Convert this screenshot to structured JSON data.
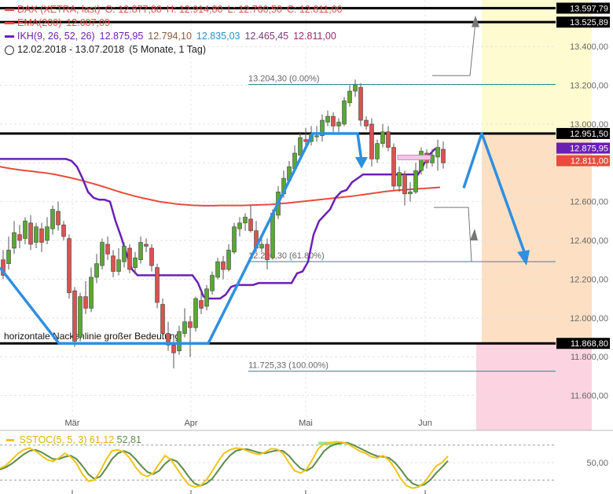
{
  "legend": {
    "dax": {
      "label": "DAX (XETRA, last)",
      "o": "O: 12.877,80",
      "h": "H: 12.914,80",
      "l": "L: 12.760,50",
      "c": "C: 12.811,00",
      "color": "#d9534f"
    },
    "ema": {
      "label": "EMA(200)",
      "value": "12.607,09",
      "color": "#e74c3c"
    },
    "ikh": {
      "label": "IKH(9, 26, 52, 26)",
      "v1": "12.875,95",
      "v2": "12.794,10",
      "v3": "12.835,03",
      "v4": "12.465,45",
      "v5": "12.811,00",
      "color": "#6a1fb5"
    },
    "period": "12.02.2018 - 13.07.2018",
    "period_detail": "(5 Monate, 1 Tag)"
  },
  "oscillator": {
    "label": "SSTOC(5, 5, 3)",
    "k": "61,12",
    "d": "52,81",
    "k_color": "#f0c419",
    "d_color": "#5d8a4a",
    "tick": "50,00"
  },
  "chart_data": {
    "type": "candlestick",
    "title": "DAX (XETRA, last)",
    "y_range": [
      11420,
      13640
    ],
    "y_ticks": [
      11600,
      11800,
      12000,
      12200,
      12400,
      12600,
      12800,
      13000,
      13200,
      13400
    ],
    "y_tick_labels": [
      "11.600,00",
      "11.800,00",
      "12.000,00",
      "12.200,00",
      "12.400,00",
      "12.600,00",
      "12.800,00",
      "13.000,00",
      "13.200,00",
      "13.400,00"
    ],
    "x_labels": [
      "Mär",
      "Apr",
      "Mai",
      "Jun"
    ],
    "candles": [
      [
        12300,
        12220,
        12350,
        12200
      ],
      [
        12280,
        12350,
        12420,
        12250
      ],
      [
        12360,
        12440,
        12500,
        12330
      ],
      [
        12430,
        12400,
        12480,
        12360
      ],
      [
        12410,
        12500,
        12520,
        12380
      ],
      [
        12490,
        12380,
        12530,
        12350
      ],
      [
        12390,
        12470,
        12490,
        12360
      ],
      [
        12460,
        12390,
        12490,
        12340
      ],
      [
        12400,
        12470,
        12520,
        12380
      ],
      [
        12460,
        12560,
        12580,
        12430
      ],
      [
        12550,
        12480,
        12600,
        12450
      ],
      [
        12480,
        12420,
        12500,
        12400
      ],
      [
        12410,
        12130,
        12430,
        12100
      ],
      [
        12140,
        11880,
        12160,
        11850
      ],
      [
        11900,
        12110,
        12130,
        11880
      ],
      [
        12110,
        12050,
        12190,
        12020
      ],
      [
        12050,
        12210,
        12260,
        12030
      ],
      [
        12210,
        12280,
        12330,
        12180
      ],
      [
        12270,
        12390,
        12410,
        12250
      ],
      [
        12380,
        12330,
        12420,
        12300
      ],
      [
        12320,
        12240,
        12350,
        12210
      ],
      [
        12240,
        12300,
        12360,
        12220
      ],
      [
        12290,
        12370,
        12390,
        12260
      ],
      [
        12360,
        12250,
        12380,
        12230
      ],
      [
        12260,
        12310,
        12340,
        12230
      ],
      [
        12300,
        12390,
        12420,
        12280
      ],
      [
        12380,
        12370,
        12410,
        12340
      ],
      [
        12360,
        12270,
        12380,
        12240
      ],
      [
        12260,
        12080,
        12280,
        12050
      ],
      [
        12070,
        11920,
        12100,
        11890
      ],
      [
        11920,
        11860,
        11980,
        11830
      ],
      [
        11860,
        11820,
        11900,
        11740
      ],
      [
        11830,
        11930,
        11960,
        11810
      ],
      [
        11920,
        11980,
        12050,
        11900
      ],
      [
        11980,
        11950,
        12010,
        11800
      ],
      [
        11950,
        12100,
        12110,
        11930
      ],
      [
        12090,
        12050,
        12150,
        12020
      ],
      [
        12060,
        12150,
        12170,
        12040
      ],
      [
        12140,
        12220,
        12240,
        12120
      ],
      [
        12210,
        12290,
        12310,
        12200
      ],
      [
        12290,
        12250,
        12320,
        12200
      ],
      [
        12250,
        12350,
        12380,
        12240
      ],
      [
        12340,
        12470,
        12490,
        12330
      ],
      [
        12460,
        12490,
        12520,
        12420
      ],
      [
        12490,
        12520,
        12540,
        12450
      ],
      [
        12510,
        12450,
        12580,
        12440
      ],
      [
        12450,
        12360,
        12500,
        12340
      ],
      [
        12360,
        12380,
        12420,
        12340
      ],
      [
        12380,
        12300,
        12410,
        12250
      ],
      [
        12310,
        12540,
        12560,
        12300
      ],
      [
        12530,
        12650,
        12680,
        12510
      ],
      [
        12640,
        12720,
        12760,
        12620
      ],
      [
        12710,
        12780,
        12810,
        12700
      ],
      [
        12770,
        12850,
        12890,
        12750
      ],
      [
        12840,
        12930,
        12960,
        12820
      ],
      [
        12920,
        12910,
        12980,
        12880
      ],
      [
        12910,
        12950,
        12990,
        12890
      ],
      [
        12940,
        12940,
        12990,
        12910
      ],
      [
        12940,
        13020,
        13050,
        12910
      ],
      [
        13010,
        13040,
        13070,
        12990
      ],
      [
        13040,
        12990,
        13060,
        12960
      ],
      [
        12990,
        13010,
        13030,
        12960
      ],
      [
        13000,
        13120,
        13140,
        12990
      ],
      [
        13110,
        13170,
        13200,
        13090
      ],
      [
        13170,
        13200,
        13230,
        13140
      ],
      [
        13190,
        13020,
        13210,
        12990
      ],
      [
        13020,
        12990,
        13040,
        12970
      ],
      [
        13000,
        12820,
        13030,
        12780
      ],
      [
        12820,
        12900,
        12920,
        12800
      ],
      [
        12900,
        12960,
        13000,
        12880
      ],
      [
        12960,
        12880,
        12990,
        12860
      ],
      [
        12880,
        12680,
        12900,
        12660
      ],
      [
        12680,
        12750,
        12780,
        12650
      ],
      [
        12740,
        12640,
        12760,
        12580
      ],
      [
        12640,
        12650,
        12700,
        12600
      ],
      [
        12650,
        12760,
        12800,
        12640
      ],
      [
        12760,
        12860,
        12880,
        12740
      ],
      [
        12850,
        12800,
        12870,
        12770
      ],
      [
        12800,
        12840,
        12870,
        12780
      ],
      [
        12830,
        12880,
        12920,
        12760
      ],
      [
        12870,
        12800,
        12910,
        12770
      ]
    ],
    "ema200": [
      12780,
      12775,
      12770,
      12766,
      12762,
      12759,
      12756,
      12752,
      12749,
      12745,
      12740,
      12734,
      12728,
      12722,
      12715,
      12708,
      12700,
      12692,
      12684,
      12675,
      12666,
      12657,
      12648,
      12640,
      12632,
      12625,
      12618,
      12612,
      12606,
      12600,
      12596,
      12592,
      12588,
      12585,
      12583,
      12581,
      12580,
      12579,
      12579,
      12579,
      12580,
      12580,
      12580,
      12580,
      12580,
      12581,
      12582,
      12583,
      12584,
      12585,
      12587,
      12590,
      12592,
      12595,
      12598,
      12601,
      12604,
      12607,
      12610,
      12613,
      12616,
      12619,
      12622,
      12625,
      12628,
      12632,
      12636,
      12640,
      12644,
      12648,
      12652,
      12655,
      12658,
      12660,
      12662,
      12664,
      12666,
      12668,
      12670,
      12672,
      12674
    ],
    "ikh_kijun": [
      12820,
      12820,
      12820,
      12820,
      12820,
      12820,
      12820,
      12820,
      12820,
      12820,
      12820,
      12820,
      12820,
      12810,
      12780,
      12720,
      12650,
      12620,
      12610,
      12610,
      12600,
      12500,
      12420,
      12330,
      12250,
      12220,
      12220,
      12220,
      12220,
      12220,
      12220,
      12220,
      12220,
      12220,
      12220,
      12220,
      12180,
      12110,
      12100,
      12100,
      12100,
      12120,
      12160,
      12170,
      12170,
      12170,
      12170,
      12180,
      12180,
      12180,
      12180,
      12180,
      12180,
      12180,
      12230,
      12240,
      12290,
      12430,
      12500,
      12530,
      12560,
      12620,
      12650,
      12660,
      12700,
      12720,
      12740,
      12740,
      12740,
      12740,
      12740,
      12740,
      12740,
      12740,
      12740,
      12740,
      12740,
      12790,
      12840,
      12870,
      12876
    ],
    "annotations": {
      "horizontal_lines": [
        {
          "value": 13597.79,
          "label": "13.597,79"
        },
        {
          "value": 13525.89,
          "label": "13.525,89"
        },
        {
          "value": 12951.5,
          "label": "12.951,50"
        },
        {
          "value": 11868.8,
          "label": "11.868,80"
        }
      ],
      "fib_lines": [
        {
          "value": 13204.3,
          "label": "13.204,30 (0.00%)"
        },
        {
          "value": 12290.3,
          "label": "12.290,30 (61.80%)"
        },
        {
          "value": 11725.33,
          "label": "11.725,33 (100.00%)"
        }
      ],
      "neckline_text": "horizontale Nackenlinie großer Bedeutung",
      "price_tags": [
        {
          "value": 12875.95,
          "label": "12.875,95",
          "color": "#6a1fb5"
        },
        {
          "value": 12811.0,
          "label": "12.811,00",
          "color": "#e74c3c"
        }
      ]
    },
    "stoch_k": [
      40,
      45,
      55,
      65,
      72,
      75,
      70,
      62,
      55,
      52,
      58,
      66,
      60,
      48,
      30,
      18,
      20,
      35,
      55,
      70,
      72,
      68,
      58,
      42,
      30,
      26,
      32,
      48,
      62,
      55,
      40,
      25,
      12,
      8,
      10,
      20,
      35,
      52,
      66,
      72,
      75,
      74,
      70,
      66,
      64,
      68,
      74,
      73,
      66,
      50,
      36,
      32,
      38,
      55,
      74,
      82,
      84,
      86,
      85,
      82,
      76,
      70,
      66,
      60,
      58,
      62,
      54,
      40,
      22,
      10,
      6,
      8,
      16,
      30,
      44,
      50,
      61
    ],
    "stoch_d": [
      38,
      42,
      48,
      56,
      64,
      70,
      72,
      68,
      62,
      56,
      56,
      60,
      62,
      56,
      44,
      30,
      22,
      26,
      40,
      56,
      66,
      70,
      66,
      56,
      44,
      34,
      30,
      36,
      48,
      56,
      52,
      40,
      26,
      14,
      10,
      14,
      22,
      36,
      50,
      62,
      70,
      73,
      73,
      70,
      67,
      66,
      69,
      71,
      70,
      62,
      50,
      40,
      36,
      42,
      56,
      70,
      78,
      82,
      84,
      84,
      80,
      75,
      70,
      65,
      61,
      60,
      58,
      50,
      38,
      24,
      14,
      10,
      12,
      20,
      32,
      42,
      53
    ]
  }
}
